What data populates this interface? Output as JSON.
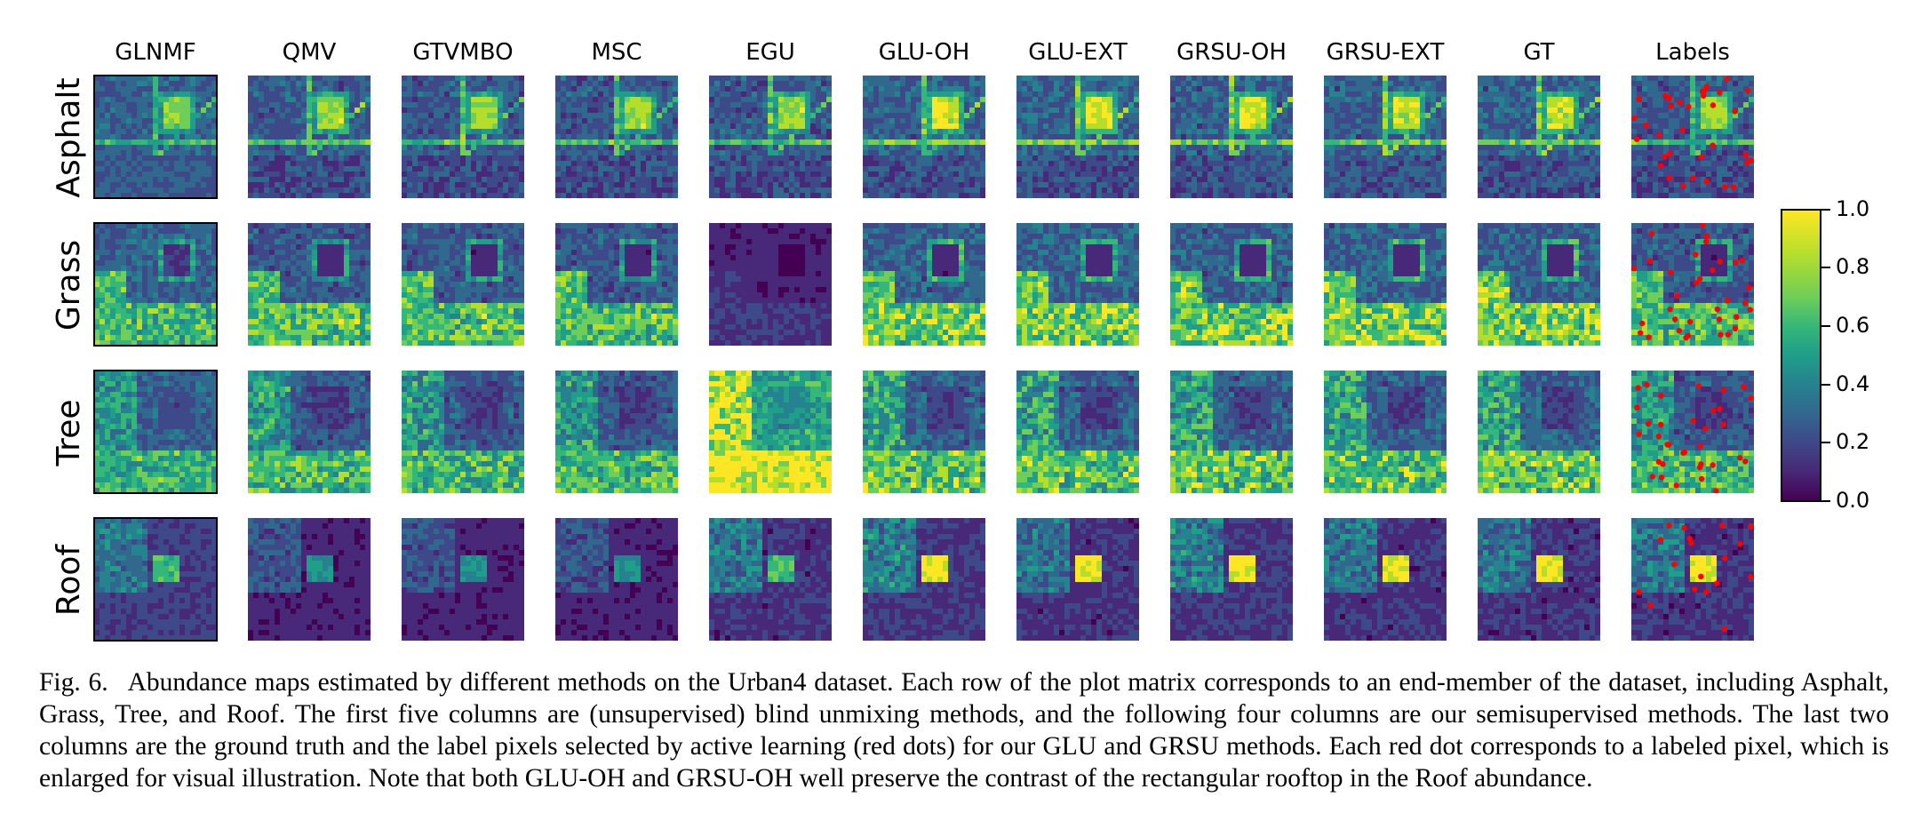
{
  "columns": [
    "GLNMF",
    "QMV",
    "GTVMBO",
    "MSC",
    "EGU",
    "GLU-OH",
    "GLU-EXT",
    "GRSU-OH",
    "GRSU-EXT",
    "GT",
    "Labels"
  ],
  "rows": [
    "Asphalt",
    "Grass",
    "Tree",
    "Roof"
  ],
  "colorbar": {
    "ticks": [
      "1.0",
      "0.8",
      "0.6",
      "0.4",
      "0.2",
      "0.0"
    ],
    "colormap": [
      "#440154",
      "#482878",
      "#3e4989",
      "#31688e",
      "#26828e",
      "#1f9e89",
      "#35b779",
      "#6ece58",
      "#b5de2b",
      "#fde725"
    ]
  },
  "label_dot_color": "#ff0000",
  "caption": {
    "figure_number": "Fig. 6.",
    "text": "Abundance maps estimated by different methods on the Urban4 dataset. Each row of the plot matrix corresponds to an end-member of the dataset, including Asphalt, Grass, Tree, and Roof. The first five columns are (unsupervised) blind unmixing methods, and the following four columns are our semisupervised methods. The last two columns are the ground truth and the label pixels selected by active learning (red dots) for our GLU and GRSU methods. Each red dot corresponds to a labeled pixel, which is enlarged for visual illustration. Note that both GLU-OH and GRSU-OH well preserve the contrast of the rectangular rooftop in the Roof abundance."
  }
}
